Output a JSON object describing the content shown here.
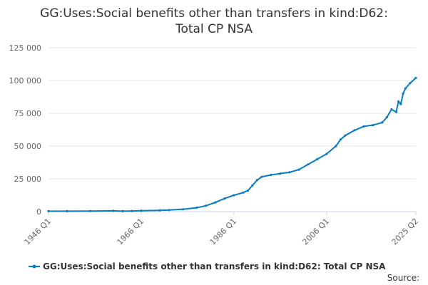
{
  "chart_data": {
    "type": "line",
    "title_lines": [
      "GG:Uses:Social benefits other than transfers in kind:D62:",
      "Total CP NSA"
    ],
    "xlabel": "",
    "ylabel": "",
    "x_range": [
      "1946 Q1",
      "2025 Q2"
    ],
    "x_tick_labels": [
      "1946 Q1",
      "1966 Q1",
      "1986 Q1",
      "2006 Q1",
      "2025 Q2"
    ],
    "y_tick_labels": [
      "0",
      "25 000",
      "50 000",
      "75 000",
      "100 000",
      "125 000"
    ],
    "ylim": [
      0,
      125000
    ],
    "grid": true,
    "legend_position": "bottom",
    "source_label": "Source:",
    "colors": {
      "series": "#0a7cc1",
      "grid": "#e6e6e6",
      "axis": "#ccd6eb"
    },
    "series": [
      {
        "name": "GG:Uses:Social benefits other than transfers in kind:D62: Total CP NSA",
        "points": [
          [
            "1946 Q1",
            300
          ],
          [
            "1950 Q1",
            350
          ],
          [
            "1955 Q1",
            450
          ],
          [
            "1960 Q1",
            600
          ],
          [
            "1962 Q1",
            300
          ],
          [
            "1964 Q1",
            500
          ],
          [
            "1966 Q1",
            700
          ],
          [
            "1970 Q1",
            1000
          ],
          [
            "1972 Q1",
            1200
          ],
          [
            "1975 Q1",
            1800
          ],
          [
            "1978 Q1",
            3000
          ],
          [
            "1980 Q1",
            4500
          ],
          [
            "1982 Q1",
            7000
          ],
          [
            "1984 Q1",
            10000
          ],
          [
            "1986 Q1",
            12500
          ],
          [
            "1988 Q1",
            14500
          ],
          [
            "1989 Q1",
            16000
          ],
          [
            "1990 Q1",
            20000
          ],
          [
            "1991 Q1",
            24000
          ],
          [
            "1992 Q1",
            26500
          ],
          [
            "1994 Q1",
            28000
          ],
          [
            "1996 Q1",
            29000
          ],
          [
            "1998 Q1",
            30000
          ],
          [
            "2000 Q1",
            32000
          ],
          [
            "2002 Q1",
            36000
          ],
          [
            "2004 Q1",
            40000
          ],
          [
            "2006 Q1",
            44000
          ],
          [
            "2008 Q1",
            50000
          ],
          [
            "2009 Q1",
            55000
          ],
          [
            "2010 Q1",
            58000
          ],
          [
            "2012 Q1",
            62000
          ],
          [
            "2014 Q1",
            65000
          ],
          [
            "2016 Q1",
            66000
          ],
          [
            "2018 Q1",
            68000
          ],
          [
            "2019 Q1",
            72000
          ],
          [
            "2020 Q1",
            78000
          ],
          [
            "2021 Q1",
            76000
          ],
          [
            "2021 Q3",
            84000
          ],
          [
            "2022 Q1",
            82000
          ],
          [
            "2022 Q3",
            90000
          ],
          [
            "2023 Q1",
            94000
          ],
          [
            "2024 Q1",
            98000
          ],
          [
            "2025 Q2",
            102000
          ]
        ]
      }
    ]
  }
}
